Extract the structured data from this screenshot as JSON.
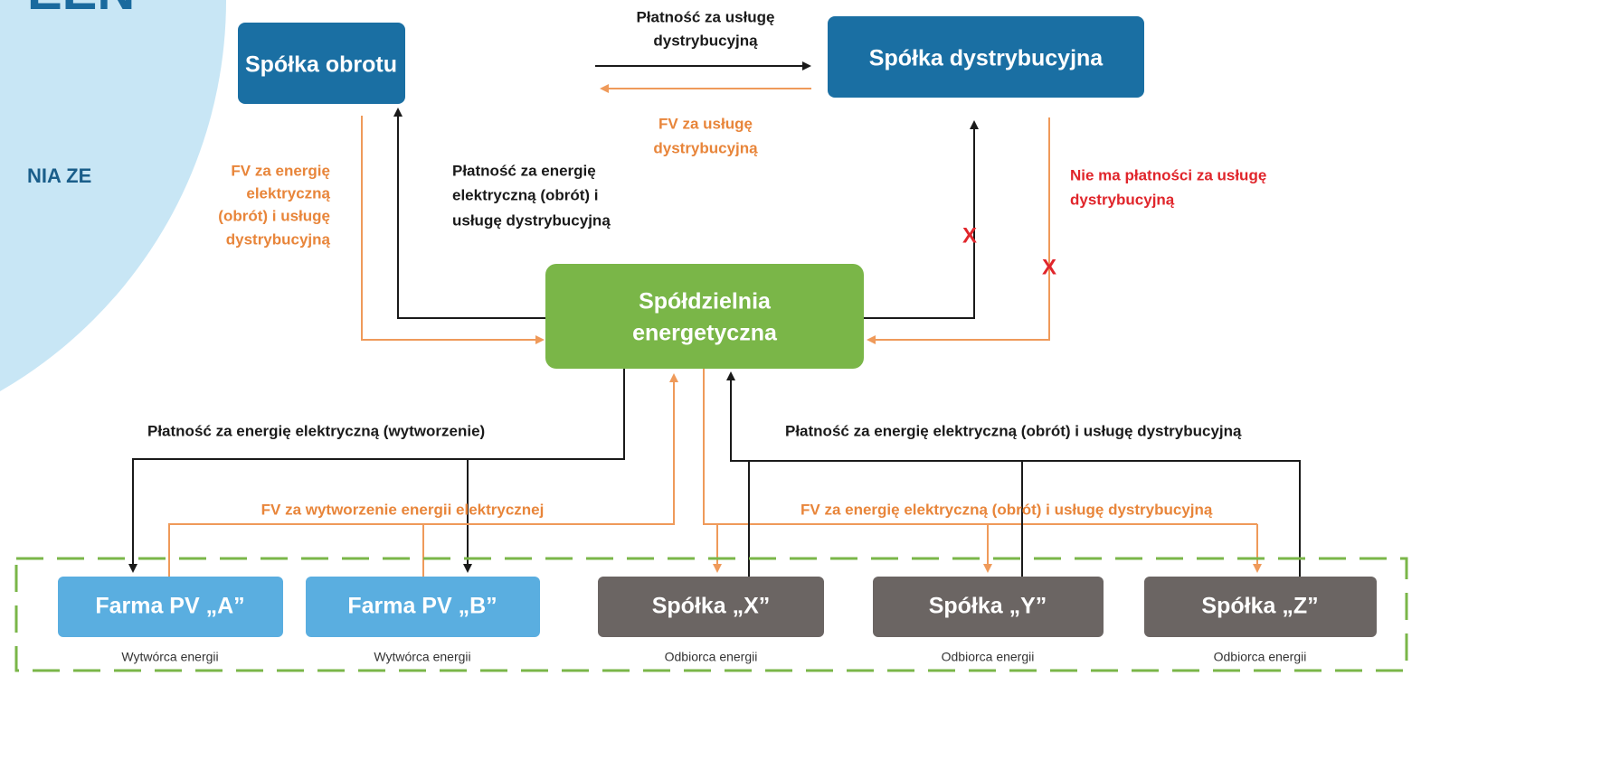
{
  "header": {
    "title_fragment": "EEN",
    "subtitle_fragment": "NIA ZE"
  },
  "nodes": [
    {
      "label": [
        "Spółka obrotu"
      ]
    },
    {
      "label": [
        "Spółka dystrybucyjna"
      ]
    },
    {
      "label": [
        "Spółdzielnia",
        "energetyczna"
      ]
    },
    {
      "label": [
        "Farma PV „A”"
      ],
      "sublabel": "Wytwórca energii"
    },
    {
      "label": [
        "Farma PV „B”"
      ],
      "sublabel": "Wytwórca energii"
    },
    {
      "label": [
        "Spółka „X”"
      ],
      "sublabel": "Odbiorca energii"
    },
    {
      "label": [
        "Spółka „Y”"
      ],
      "sublabel": "Odbiorca energii"
    },
    {
      "label": [
        "Spółka „Z”"
      ],
      "sublabel": "Odbiorca energii"
    }
  ],
  "edge_labels": [
    {
      "lines": [
        "Płatność za usługę",
        "dystrybucyjną"
      ]
    },
    {
      "lines": [
        "FV za usługę",
        "dystrybucyjną"
      ]
    },
    {
      "lines": [
        "FV za energię",
        "elektryczną",
        "(obrót) i usługę",
        "dystrybucyjną"
      ]
    },
    {
      "lines": [
        "Płatność za energię",
        "elektryczną (obrót) i",
        "usługę dystrybucyjną"
      ]
    },
    {
      "lines": [
        "Nie ma płatności za usługę",
        "dystrybucyjną"
      ]
    },
    {
      "lines": [
        "Płatność za energię elektryczną (wytworzenie)"
      ]
    },
    {
      "lines": [
        "FV za wytworzenie energii elektrycznej"
      ]
    },
    {
      "lines": [
        "Płatność za energię elektryczną (obrót) i usługę dystrybucyjną"
      ]
    },
    {
      "lines": [
        "FV za energię elektryczną (obrót) i usługę dystrybucyjną"
      ]
    }
  ],
  "blocked_marks": [
    "X",
    "X"
  ]
}
